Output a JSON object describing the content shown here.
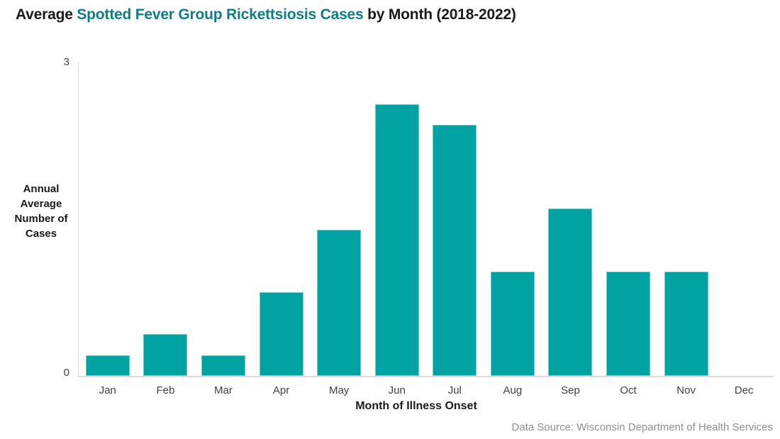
{
  "title": {
    "prefix": "Average ",
    "highlight": "Spotted Fever Group Rickettsiosis Cases",
    "suffix": " by Month (2018-2022)"
  },
  "source": "Data Source: Wisconsin Department of Health Services",
  "colors": {
    "bar": "#00A3A1",
    "title_highlight": "#107C86",
    "axis_line": "#DCDCDC",
    "tick_label": "#404040",
    "source_text": "#8F8F8F"
  },
  "chart_data": {
    "type": "bar",
    "title": "Average Spotted Fever Group Rickettsiosis Cases by Month (2018-2022)",
    "categories": [
      "Jan",
      "Feb",
      "Mar",
      "Apr",
      "May",
      "Jun",
      "Jul",
      "Aug",
      "Sep",
      "Oct",
      "Nov",
      "Dec"
    ],
    "values": [
      0.2,
      0.4,
      0.2,
      0.8,
      1.4,
      2.6,
      2.4,
      1.0,
      1.6,
      1.0,
      1.0,
      0
    ],
    "xlabel": "Month of Illness Onset",
    "ylabel": "Annual Average Number of Cases",
    "ylabel_lines": "Annual\nAverage\nNumber of\nCases",
    "ylim": [
      0,
      3
    ],
    "ytick_labels": {
      "min": "0",
      "max": "3"
    },
    "grid": false,
    "legend": false
  }
}
